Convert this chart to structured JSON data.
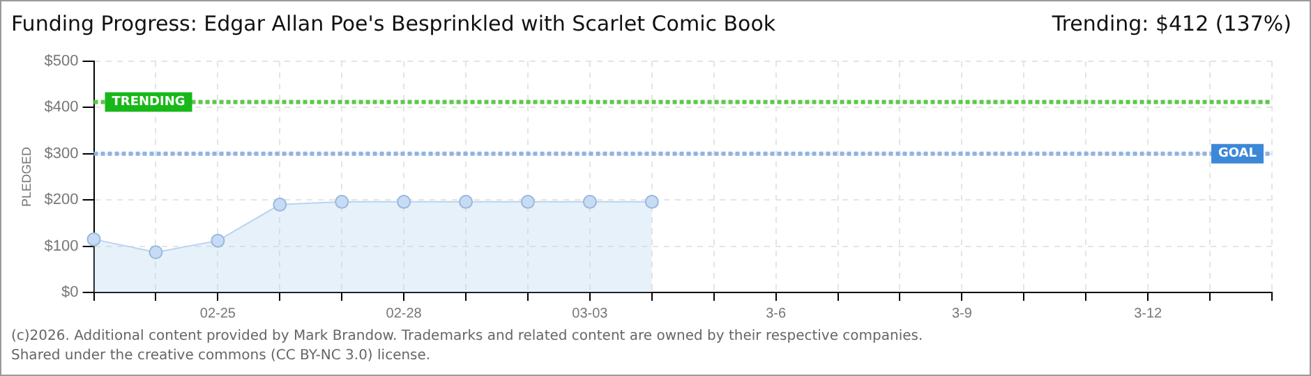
{
  "chart_data": {
    "type": "area",
    "title": "Funding Progress: Edgar Allan Poe's Besprinkled with Scarlet Comic Book",
    "subtitle": "Trending: $412 (137%)",
    "ylabel": "PLEDGED",
    "categories": [
      null,
      null,
      "02-25",
      null,
      null,
      "02-28",
      null,
      null,
      "03-03",
      null,
      null,
      "3-6",
      null,
      null,
      "3-9",
      null,
      null,
      "3-12",
      null,
      null
    ],
    "series": [
      {
        "color": "#b8d4f0",
        "values": [
          115,
          87,
          112,
          190,
          196,
          196,
          196,
          196,
          196,
          196,
          null,
          null,
          null,
          null,
          null,
          null,
          null,
          null,
          null,
          null
        ]
      }
    ],
    "ylim": [
      0,
      500
    ],
    "yticks": [
      {
        "value": 0,
        "label": "$0"
      },
      {
        "value": 100,
        "label": "$100"
      },
      {
        "value": 200,
        "label": "$200"
      },
      {
        "value": 300,
        "label": "$300"
      },
      {
        "value": 400,
        "label": "$400"
      },
      {
        "value": 500,
        "label": "$500"
      }
    ],
    "ref_lines": [
      {
        "axis": "y",
        "value": 412,
        "label": "TRENDING",
        "color": "#5cc84a",
        "line_style": "dotted"
      },
      {
        "axis": "y",
        "value": 300,
        "label": "GOAL",
        "color": "#8fb4e0",
        "line_style": "dotted"
      }
    ],
    "grid": true,
    "marker": "circle",
    "legend": false,
    "annotations": [
      "(c)2026. Additional content provided by Mark Brandow. Trademarks and related content are owned by their respective companies.",
      "Shared under the creative commons (CC BY-NC 3.0) license."
    ]
  }
}
